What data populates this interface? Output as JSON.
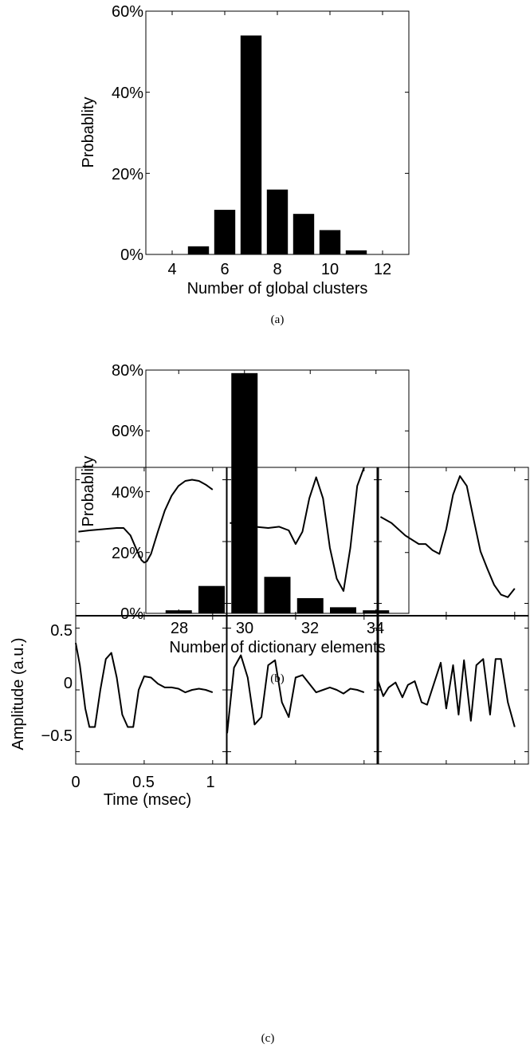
{
  "chart_data": [
    {
      "type": "bar",
      "caption": "(a)",
      "xlabel": "Number of global clusters",
      "ylabel": "Probablity",
      "x": [
        5,
        6,
        7,
        8,
        9,
        10,
        11
      ],
      "values": [
        2,
        11,
        54,
        16,
        10,
        6,
        1
      ],
      "xlim": [
        3,
        13
      ],
      "ylim": [
        0,
        60
      ],
      "xticks": [
        "4",
        "6",
        "8",
        "10",
        "12"
      ],
      "yticks": [
        "0%",
        "20%",
        "40%",
        "60%"
      ],
      "color": "#000000"
    },
    {
      "type": "bar",
      "caption": "(b)",
      "xlabel": "Number of dictionary elements",
      "ylabel": "Probablity",
      "x": [
        28,
        29,
        30,
        31,
        32,
        33,
        34
      ],
      "values": [
        1,
        9,
        79,
        12,
        5,
        2,
        1
      ],
      "xlim": [
        27,
        35
      ],
      "ylim": [
        0,
        80
      ],
      "xticks": [
        "28",
        "30",
        "32",
        "34"
      ],
      "yticks": [
        "0%",
        "20%",
        "40%",
        "60%",
        "80%"
      ],
      "color": "#000000"
    },
    {
      "type": "line",
      "caption": "(c)",
      "xlabel": "Time (msec)",
      "ylabel": "Amplitude (a.u.)",
      "xlim": [
        0,
        1.1
      ],
      "ylim": [
        -0.6,
        0.6
      ],
      "xticks": [
        "0",
        "0.5",
        "1"
      ],
      "yticks": [
        "0.5",
        "0",
        "−0.5"
      ],
      "panels": [
        {
          "row": 0,
          "col": 0,
          "x": [
            0.02,
            0.1,
            0.2,
            0.3,
            0.35,
            0.4,
            0.45,
            0.48,
            0.5,
            0.52,
            0.55,
            0.6,
            0.65,
            0.7,
            0.75,
            0.8,
            0.85,
            0.9,
            0.95,
            1.0
          ],
          "y": [
            0.08,
            0.09,
            0.1,
            0.11,
            0.11,
            0.05,
            -0.08,
            -0.15,
            -0.17,
            -0.16,
            -0.1,
            0.08,
            0.25,
            0.37,
            0.45,
            0.49,
            0.5,
            0.49,
            0.46,
            0.42
          ]
        },
        {
          "row": 0,
          "col": 1,
          "x": [
            0.02,
            0.1,
            0.2,
            0.3,
            0.38,
            0.45,
            0.5,
            0.55,
            0.6,
            0.65,
            0.7,
            0.75,
            0.8,
            0.85,
            0.9,
            0.95,
            1.0
          ],
          "y": [
            0.15,
            0.15,
            0.12,
            0.11,
            0.12,
            0.09,
            -0.02,
            0.08,
            0.35,
            0.52,
            0.35,
            -0.05,
            -0.3,
            -0.4,
            -0.05,
            0.45,
            0.6
          ]
        },
        {
          "row": 0,
          "col": 2,
          "x": [
            0.02,
            0.1,
            0.2,
            0.3,
            0.35,
            0.4,
            0.45,
            0.5,
            0.55,
            0.6,
            0.65,
            0.7,
            0.75,
            0.8,
            0.85,
            0.9,
            0.95,
            1.0
          ],
          "y": [
            0.2,
            0.15,
            0.05,
            -0.02,
            -0.02,
            -0.07,
            -0.1,
            0.1,
            0.38,
            0.53,
            0.45,
            0.18,
            -0.08,
            -0.22,
            -0.35,
            -0.43,
            -0.45,
            -0.38
          ]
        },
        {
          "row": 1,
          "col": 0,
          "x": [
            0.0,
            0.03,
            0.07,
            0.1,
            0.14,
            0.18,
            0.22,
            0.26,
            0.3,
            0.34,
            0.38,
            0.42,
            0.46,
            0.5,
            0.55,
            0.6,
            0.65,
            0.7,
            0.75,
            0.8,
            0.85,
            0.9,
            0.95,
            1.0
          ],
          "y": [
            0.38,
            0.2,
            -0.15,
            -0.3,
            -0.3,
            0.0,
            0.25,
            0.3,
            0.1,
            -0.2,
            -0.3,
            -0.3,
            0.0,
            0.11,
            0.1,
            0.05,
            0.02,
            0.02,
            0.01,
            -0.02,
            0.0,
            0.01,
            0.0,
            -0.02
          ]
        },
        {
          "row": 1,
          "col": 1,
          "x": [
            0.0,
            0.05,
            0.1,
            0.15,
            0.2,
            0.25,
            0.3,
            0.35,
            0.4,
            0.45,
            0.5,
            0.55,
            0.6,
            0.65,
            0.7,
            0.75,
            0.8,
            0.85,
            0.9,
            0.95,
            1.0
          ],
          "y": [
            -0.35,
            0.18,
            0.28,
            0.1,
            -0.28,
            -0.22,
            0.2,
            0.24,
            -0.1,
            -0.22,
            0.1,
            0.12,
            0.05,
            -0.02,
            0.0,
            0.02,
            0.0,
            -0.03,
            0.01,
            0.0,
            -0.02
          ]
        },
        {
          "row": 1,
          "col": 2,
          "x": [
            0.0,
            0.04,
            0.08,
            0.13,
            0.18,
            0.22,
            0.27,
            0.32,
            0.36,
            0.41,
            0.46,
            0.5,
            0.55,
            0.59,
            0.63,
            0.68,
            0.72,
            0.77,
            0.82,
            0.86,
            0.9,
            0.95,
            1.0
          ],
          "y": [
            0.08,
            -0.05,
            0.02,
            0.06,
            -0.06,
            0.04,
            0.07,
            -0.1,
            -0.12,
            0.05,
            0.22,
            -0.15,
            0.2,
            -0.2,
            0.24,
            -0.25,
            0.2,
            0.25,
            -0.2,
            0.25,
            0.25,
            -0.1,
            -0.3
          ]
        }
      ]
    }
  ]
}
